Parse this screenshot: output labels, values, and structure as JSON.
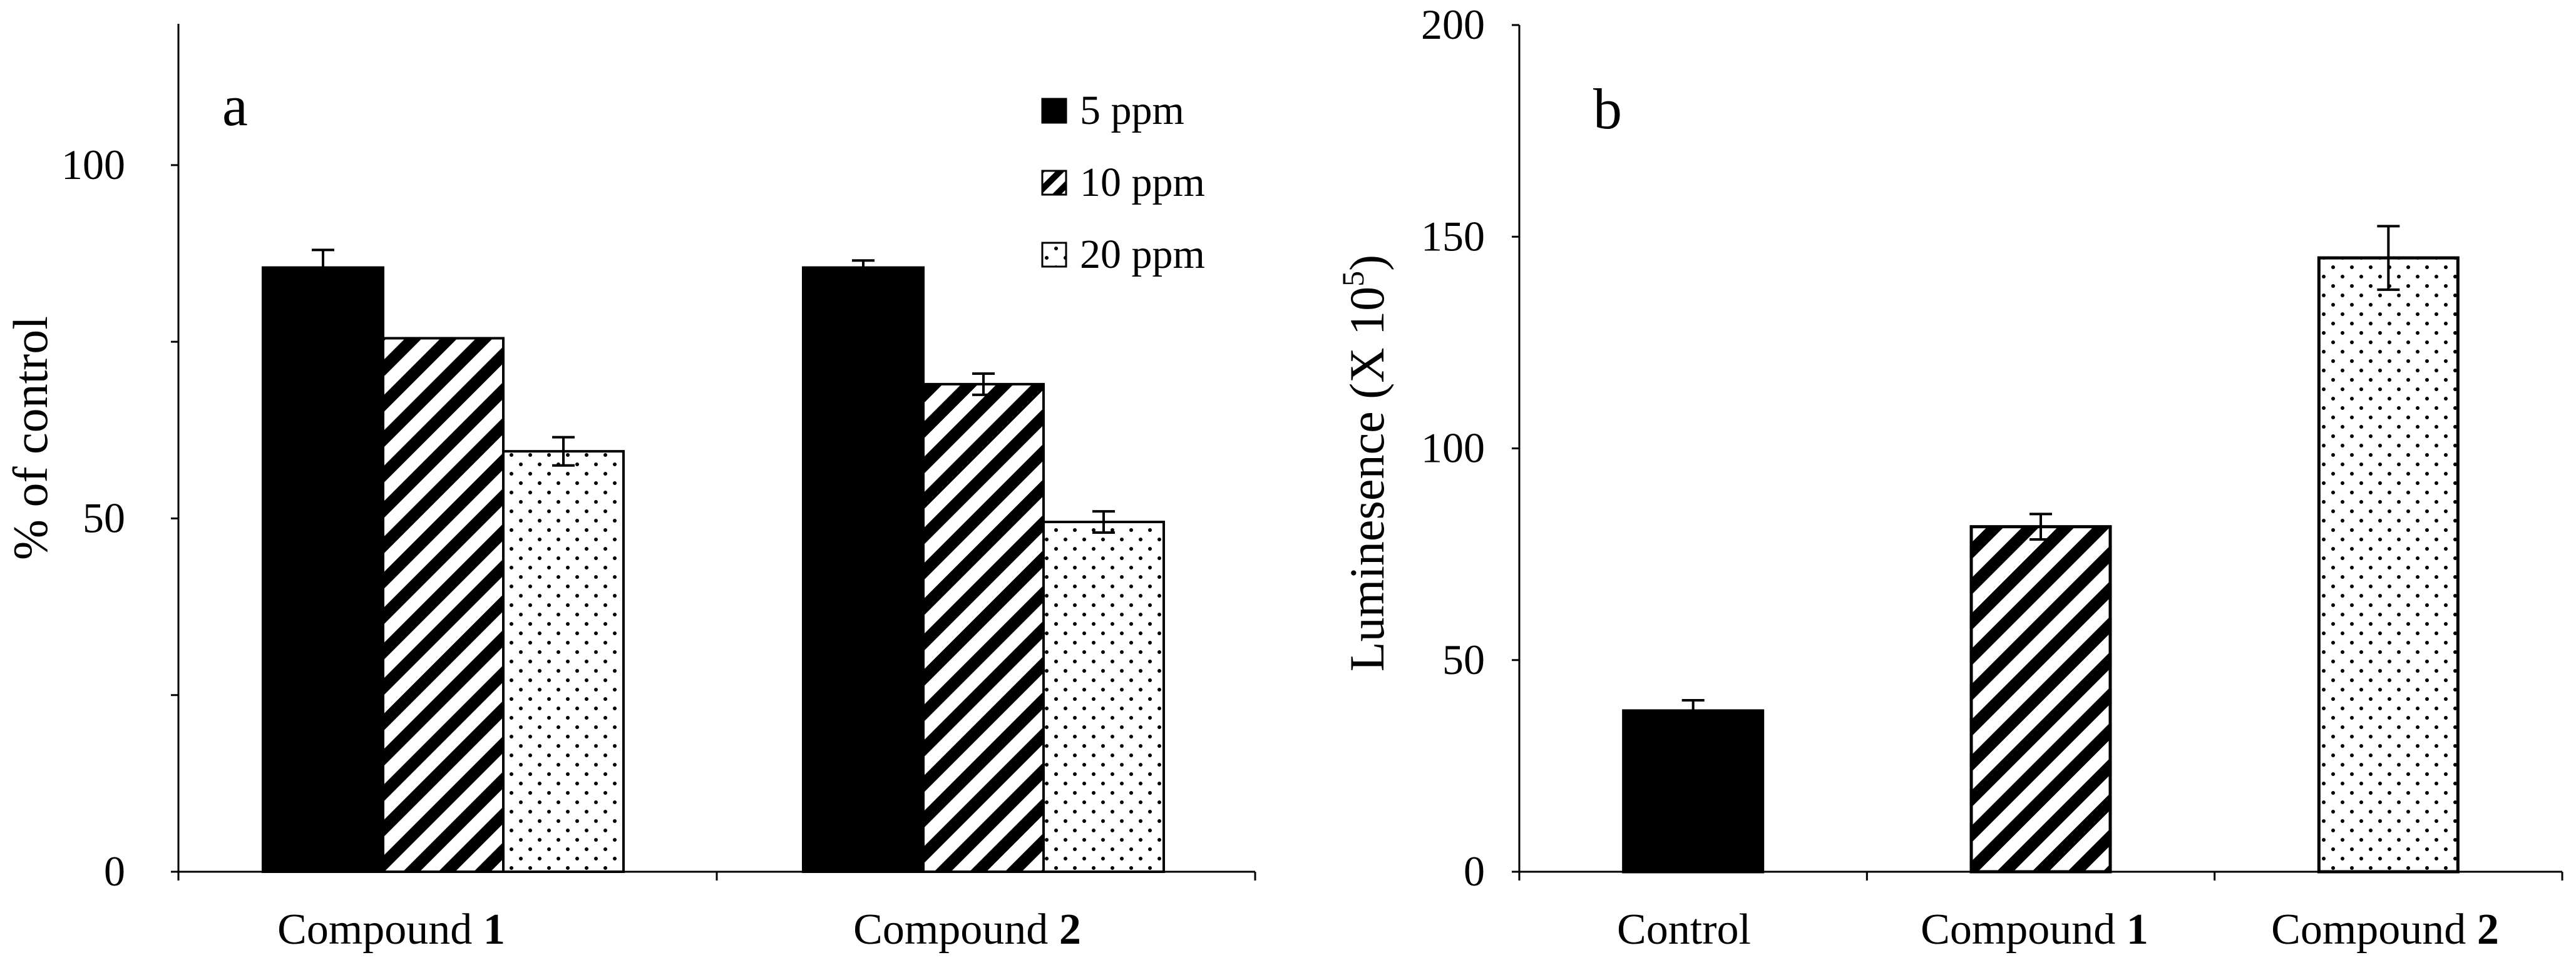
{
  "chart_data": [
    {
      "panel": "a",
      "type": "bar",
      "ylabel": "% of control",
      "ylim": [
        0,
        120
      ],
      "yticks": [
        0,
        50,
        100
      ],
      "categories": [
        {
          "text": "Compound ",
          "bold": "1"
        },
        {
          "text": "Compound ",
          "bold": "2"
        }
      ],
      "series": [
        {
          "name": "5 ppm",
          "pattern": "solid",
          "values": [
            85.5,
            85.5
          ],
          "errors": [
            2.5,
            1.0
          ]
        },
        {
          "name": "10 ppm",
          "pattern": "hatch",
          "values": [
            75.5,
            69.0
          ],
          "errors": [
            0,
            1.5
          ]
        },
        {
          "name": "20 ppm",
          "pattern": "dots",
          "values": [
            59.5,
            49.5
          ],
          "errors": [
            2.0,
            1.5
          ]
        }
      ],
      "legend_position": "top-right"
    },
    {
      "panel": "b",
      "type": "bar",
      "ylabel": "Luminesence (X 10",
      "ylabel_sup": "5",
      "ylabel_close": ")",
      "ylim": [
        0,
        200
      ],
      "yticks": [
        0,
        50,
        100,
        150,
        200
      ],
      "categories": [
        {
          "text": "Control",
          "bold": ""
        },
        {
          "text": "Compound ",
          "bold": "1"
        },
        {
          "text": "Compound ",
          "bold": "2"
        }
      ],
      "patterns": [
        "solid",
        "hatch",
        "dots"
      ],
      "values": [
        38,
        81.5,
        145
      ],
      "errors": [
        2.5,
        3.0,
        7.5
      ]
    }
  ]
}
